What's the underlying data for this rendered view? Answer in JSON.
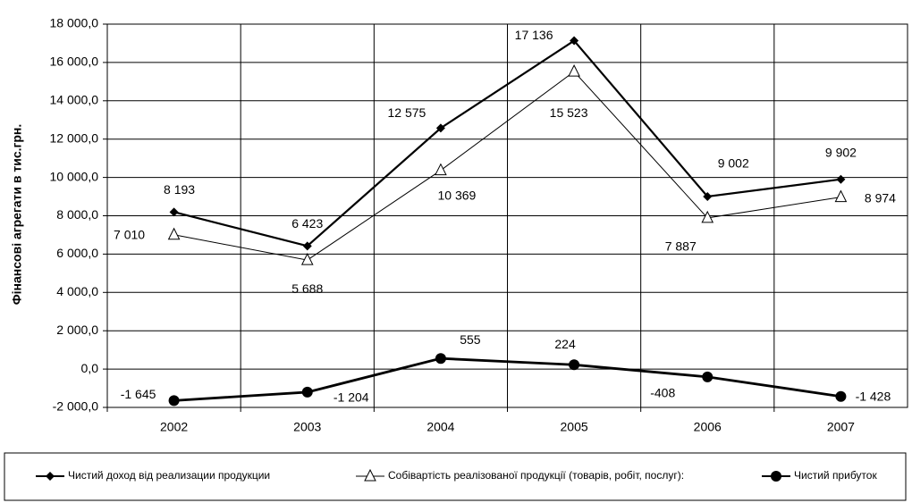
{
  "chart_data": {
    "type": "line",
    "y_axis_label": "Фінансові агрегати в тис.грн.",
    "categories": [
      "2002",
      "2003",
      "2004",
      "2005",
      "2006",
      "2007"
    ],
    "ylim": [
      -2000,
      18000
    ],
    "yticks": [
      {
        "value": -2000,
        "label": "-2 000,0"
      },
      {
        "value": 0,
        "label": "0,0"
      },
      {
        "value": 2000,
        "label": "2 000,0"
      },
      {
        "value": 4000,
        "label": "4 000,0"
      },
      {
        "value": 6000,
        "label": "6 000,0"
      },
      {
        "value": 8000,
        "label": "8 000,0"
      },
      {
        "value": 10000,
        "label": "10 000,0"
      },
      {
        "value": 12000,
        "label": "12 000,0"
      },
      {
        "value": 14000,
        "label": "14 000,0"
      },
      {
        "value": 16000,
        "label": "16 000,0"
      },
      {
        "value": 18000,
        "label": "18 000,0"
      }
    ],
    "grid": true,
    "legend": "bottom",
    "series": [
      {
        "name": "Чистий доход  від реализации продукции",
        "color": "#000000",
        "marker": "diamond",
        "values": [
          8193,
          6423,
          12575,
          17136,
          9002,
          9902
        ],
        "value_labels": [
          "8 193",
          "6 423",
          "12 575",
          "17 136",
          "9 002",
          "9 902"
        ]
      },
      {
        "name": "Собівартість реалізованої продукції (товарів, робіт, послуг):",
        "color": "#000000",
        "marker": "triangle",
        "values": [
          7010,
          5688,
          10369,
          15523,
          7887,
          8974
        ],
        "value_labels": [
          "7 010",
          "5 688",
          "10 369",
          "15 523",
          "7 887",
          "8 974"
        ]
      },
      {
        "name": "Чистий прибуток",
        "color": "#000000",
        "marker": "circle",
        "values": [
          -1645,
          -1204,
          555,
          224,
          -408,
          -1428
        ],
        "value_labels": [
          "-1 645",
          "-1 204",
          "555",
          "224",
          "-408",
          "-1 428"
        ]
      }
    ]
  }
}
